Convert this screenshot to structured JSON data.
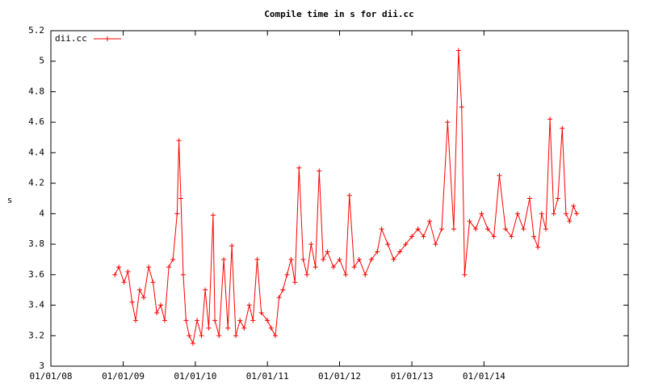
{
  "chart_data": {
    "type": "line",
    "title": "Compile time in s for dii.cc",
    "y_label": "s",
    "x": [
      "2008-11-20",
      "2008-12-10",
      "2009-01-05",
      "2009-01-25",
      "2009-02-15",
      "2009-03-05",
      "2009-03-25",
      "2009-04-15",
      "2009-05-10",
      "2009-06-01",
      "2009-06-20",
      "2009-07-10",
      "2009-07-30",
      "2009-08-20",
      "2009-09-10",
      "2009-10-01",
      "2009-10-10",
      "2009-10-20",
      "2009-11-01",
      "2009-11-15",
      "2009-12-01",
      "2009-12-20",
      "2010-01-10",
      "2010-02-01",
      "2010-02-20",
      "2010-03-10",
      "2010-04-01",
      "2010-04-10",
      "2010-05-01",
      "2010-05-25",
      "2010-06-15",
      "2010-07-05",
      "2010-07-25",
      "2010-08-15",
      "2010-09-05",
      "2010-10-01",
      "2010-10-20",
      "2010-11-10",
      "2010-12-01",
      "2011-01-01",
      "2011-01-20",
      "2011-02-10",
      "2011-03-01",
      "2011-03-20",
      "2011-04-10",
      "2011-05-01",
      "2011-05-20",
      "2011-06-10",
      "2011-07-01",
      "2011-07-20",
      "2011-08-10",
      "2011-09-01",
      "2011-09-20",
      "2011-10-10",
      "2011-11-01",
      "2011-12-01",
      "2012-01-01",
      "2012-02-01",
      "2012-02-20",
      "2012-03-15",
      "2012-04-10",
      "2012-05-10",
      "2012-06-10",
      "2012-07-10",
      "2012-08-01",
      "2012-09-01",
      "2012-10-01",
      "2012-11-01",
      "2012-12-01",
      "2013-01-01",
      "2013-02-01",
      "2013-03-01",
      "2013-04-01",
      "2013-05-01",
      "2013-06-01",
      "2013-07-01",
      "2013-08-01",
      "2013-08-25",
      "2013-09-10",
      "2013-09-25",
      "2013-10-20",
      "2013-11-20",
      "2013-12-20",
      "2014-01-20",
      "2014-02-20",
      "2014-03-20",
      "2014-04-20",
      "2014-05-20",
      "2014-06-20",
      "2014-07-20",
      "2014-08-20",
      "2014-09-10",
      "2014-10-01",
      "2014-10-20",
      "2014-11-10",
      "2014-12-01",
      "2014-12-20",
      "2015-01-10",
      "2015-02-01",
      "2015-02-20",
      "2015-03-10",
      "2015-03-30",
      "2015-04-15"
    ],
    "series": [
      {
        "name": "dii.cc",
        "color": "#ff0000",
        "values": [
          3.6,
          3.65,
          3.55,
          3.62,
          3.42,
          3.3,
          3.5,
          3.45,
          3.65,
          3.55,
          3.35,
          3.4,
          3.3,
          3.65,
          3.7,
          4.0,
          4.48,
          4.1,
          3.6,
          3.3,
          3.2,
          3.15,
          3.3,
          3.2,
          3.5,
          3.25,
          3.99,
          3.3,
          3.2,
          3.7,
          3.25,
          3.79,
          3.2,
          3.3,
          3.25,
          3.4,
          3.3,
          3.7,
          3.35,
          3.3,
          3.25,
          3.2,
          3.45,
          3.5,
          3.6,
          3.7,
          3.55,
          4.3,
          3.7,
          3.6,
          3.8,
          3.65,
          4.28,
          3.7,
          3.75,
          3.65,
          3.7,
          3.6,
          4.12,
          3.65,
          3.7,
          3.6,
          3.7,
          3.75,
          3.9,
          3.8,
          3.7,
          3.75,
          3.8,
          3.85,
          3.9,
          3.85,
          3.95,
          3.8,
          3.9,
          4.6,
          3.9,
          5.07,
          4.7,
          3.6,
          3.95,
          3.9,
          4.0,
          3.9,
          3.85,
          4.25,
          3.9,
          3.85,
          4.0,
          3.9,
          4.1,
          3.85,
          3.78,
          4.0,
          3.9,
          4.62,
          4.0,
          4.1,
          4.56,
          4.0,
          3.95,
          4.05,
          4.0
        ]
      }
    ],
    "xlim": [
      "2008-01-01",
      "2016-01-01"
    ],
    "xticks": [
      {
        "value": "2008-01-01",
        "label": "01/01/08"
      },
      {
        "value": "2009-01-01",
        "label": "01/01/09"
      },
      {
        "value": "2010-01-01",
        "label": "01/01/10"
      },
      {
        "value": "2011-01-01",
        "label": "01/01/11"
      },
      {
        "value": "2012-01-01",
        "label": "01/01/12"
      },
      {
        "value": "2013-01-01",
        "label": "01/01/13"
      },
      {
        "value": "2014-01-01",
        "label": "01/01/14"
      }
    ],
    "ylim": [
      3,
      5.2
    ],
    "yticks": [
      3,
      3.2,
      3.4,
      3.6,
      3.8,
      4,
      4.2,
      4.4,
      4.6,
      4.8,
      5,
      5.2
    ],
    "legend": "upper left"
  }
}
